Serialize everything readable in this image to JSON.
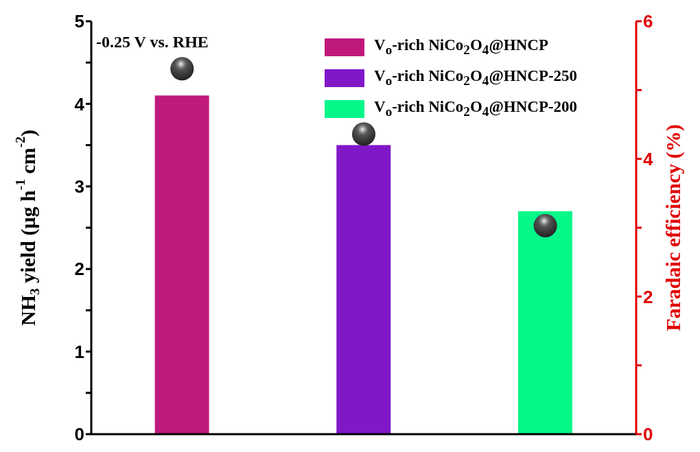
{
  "chart_data": {
    "type": "bar",
    "stacked": true,
    "categories": [
      null,
      null,
      null
    ],
    "series": [
      {
        "name": "V$_{o}$-rich NiCo$_{2}$O$_{4}$@HNCP",
        "color": "#c0197e",
        "values": [
          4.1,
          null,
          null
        ]
      },
      {
        "name": "V$_{o}$-rich NiCo$_{2}$O$_{4}$@HNCP-250",
        "color": "#8018c8",
        "values": [
          null,
          3.5,
          null
        ]
      },
      {
        "name": "V$_{o}$-rich NiCo$_{2}$O$_{4}$@HNCP-200",
        "color": "#05f78a",
        "values": [
          null,
          null,
          2.7
        ]
      },
      {
        "type": "scatter",
        "axis": "y2",
        "color": "#333333",
        "marker": "circle",
        "values": [
          5.31,
          4.36,
          3.03
        ]
      }
    ],
    "ylabel": "NH$_{3}$ yield (μg h$^{-1}$ cm$^{-2}$)",
    "y2label": "Faradaic efficiency (%)",
    "ylim": [
      0,
      5
    ],
    "yticks": [
      0,
      {
        "value": 0.5,
        "label": null
      },
      1,
      {
        "value": 1.5,
        "label": null
      },
      2,
      {
        "value": 2.5,
        "label": null
      },
      3,
      {
        "value": 3.5,
        "label": null
      },
      4,
      {
        "value": 4.5,
        "label": null
      },
      5
    ],
    "y2lim": [
      0,
      6
    ],
    "y2ticks": [
      0,
      {
        "value": 1,
        "label": null
      },
      2,
      {
        "value": 3,
        "label": null
      },
      4,
      {
        "value": 5,
        "label": null
      },
      6
    ],
    "annotations": [
      "-0.25 V vs. RHE"
    ],
    "legend": "top right",
    "grid": false
  }
}
